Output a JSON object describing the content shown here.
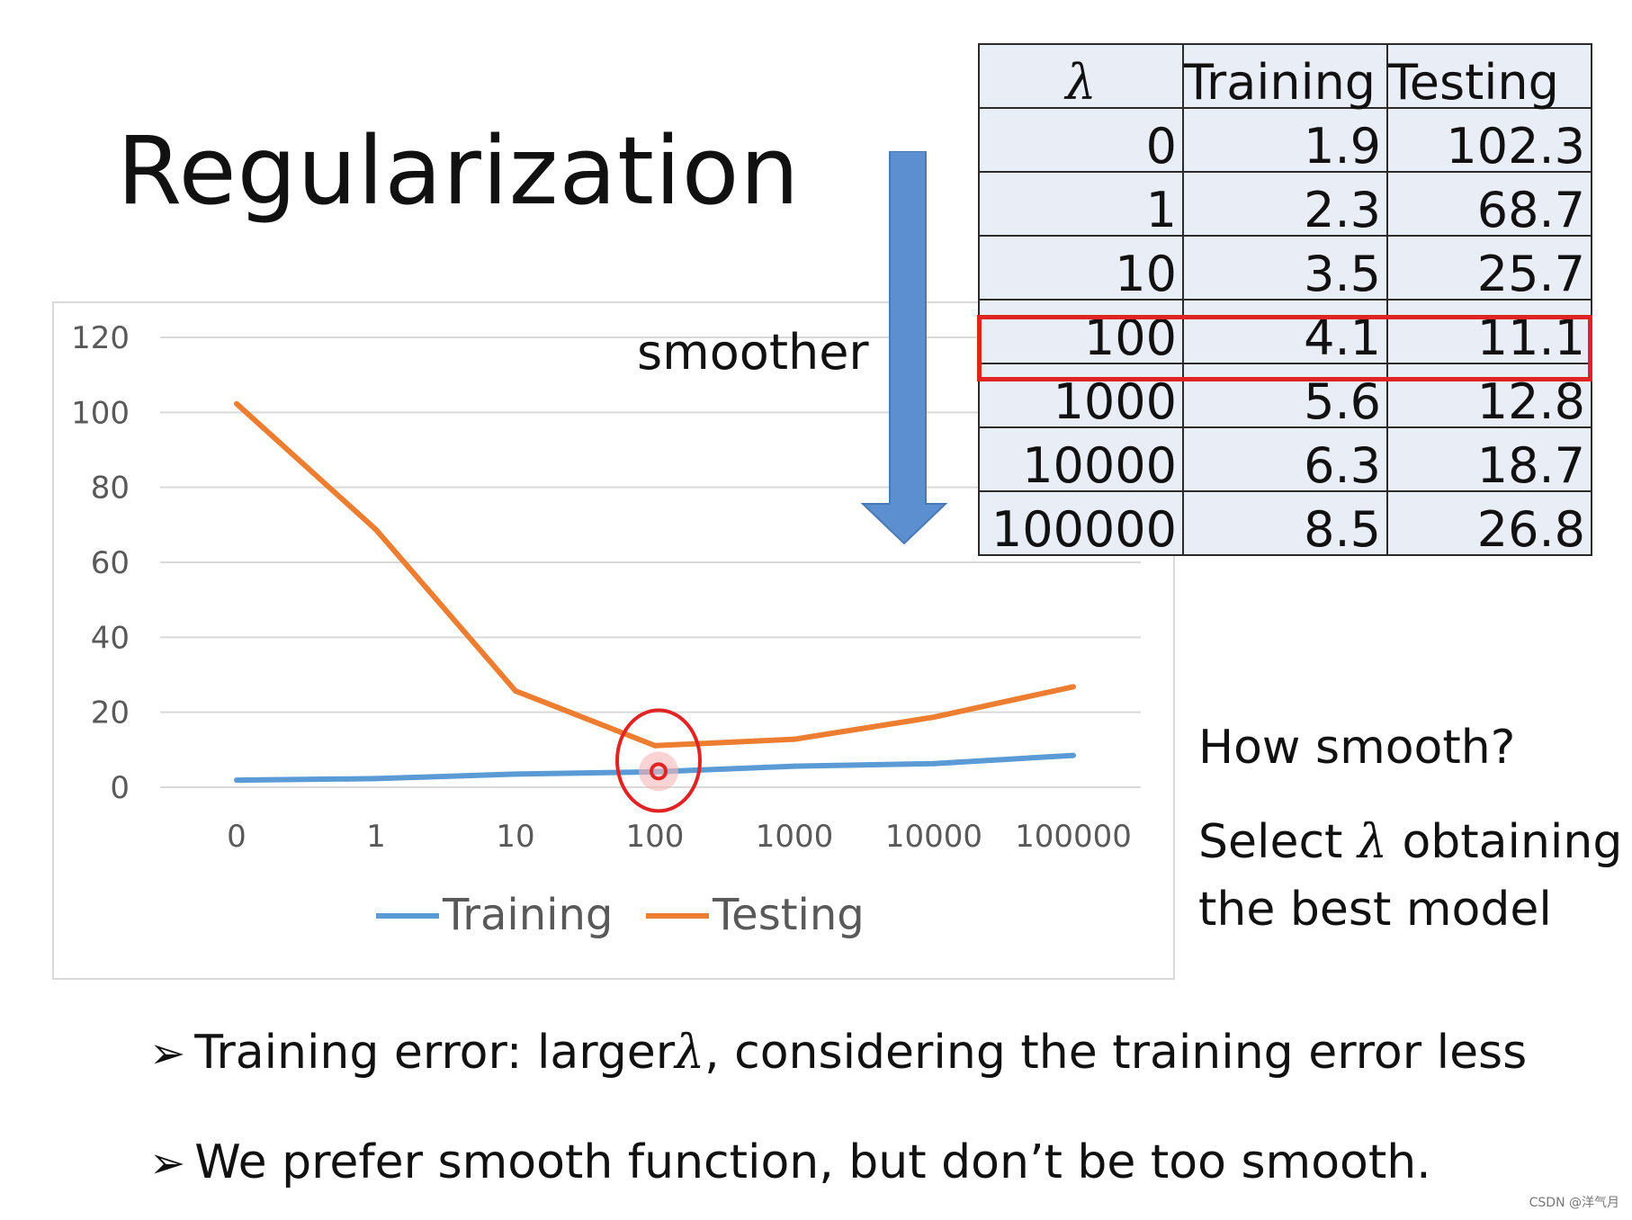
{
  "title": "Regularization",
  "smoother_label": "smoother",
  "table": {
    "headers": [
      "λ",
      "Training",
      "Testing"
    ],
    "rows": [
      [
        "0",
        "1.9",
        "102.3"
      ],
      [
        "1",
        "2.3",
        "68.7"
      ],
      [
        "10",
        "3.5",
        "25.7"
      ],
      [
        "100",
        "4.1",
        "11.1"
      ],
      [
        "1000",
        "5.6",
        "12.8"
      ],
      [
        "10000",
        "6.3",
        "18.7"
      ],
      [
        "100000",
        "8.5",
        "26.8"
      ]
    ],
    "highlight_row": 3,
    "highlight_color": "#e02424"
  },
  "side": {
    "question": "How smooth?",
    "select_pre": "Select ",
    "lambda": "λ",
    "select_post": " obtaining",
    "line2": "the best model"
  },
  "bullets": {
    "b1_pre": "Training error: larger",
    "b1_lambda": "λ",
    "b1_post": ", considering the training error less",
    "b2": "We prefer smooth function, but don’t be too smooth.",
    "marker": "➢"
  },
  "watermark": "CSDN @洋气月",
  "chart_data": {
    "type": "line",
    "categories": [
      "0",
      "1",
      "10",
      "100",
      "1000",
      "10000",
      "100000"
    ],
    "series": [
      {
        "name": "Training",
        "values": [
          1.9,
          2.3,
          3.5,
          4.1,
          5.6,
          6.3,
          8.5
        ],
        "color": "#5b9bd5"
      },
      {
        "name": "Testing",
        "values": [
          102.3,
          68.7,
          25.7,
          11.1,
          12.8,
          18.7,
          26.8
        ],
        "color": "#ed7d31"
      }
    ],
    "y_ticks": [
      "0",
      "20",
      "40",
      "60",
      "80",
      "100",
      "120"
    ],
    "ylim": [
      0,
      120
    ],
    "grid": true,
    "legend": "bottom",
    "highlight_category": "100",
    "highlight_color": "#e02424"
  }
}
